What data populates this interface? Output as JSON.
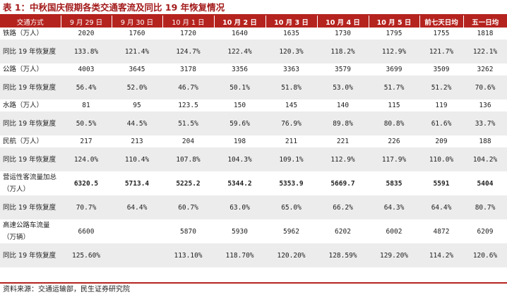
{
  "title": "表 1：中秋国庆假期各类交通客流及同比 19 年恢复情况",
  "source": "资料来源：交通运输部，民生证券研究院",
  "colors": {
    "accent": "#b5231f",
    "title": "#a31a1a",
    "stripe": "#ececec"
  },
  "table": {
    "headers": [
      "交通方式",
      "9 月 29 日",
      "9 月 30 日",
      "10 月 1 日",
      "10 月 2 日",
      "10 月 3 日",
      "10 月 4 日",
      "10 月 5 日",
      "前七天日均",
      "五一日均"
    ],
    "rows": [
      {
        "label": "铁路（万人）",
        "values": [
          "2020",
          "1760",
          "1720",
          "1640",
          "1635",
          "1730",
          "1795",
          "1755",
          "1818"
        ]
      },
      {
        "label": "同比 19 年恢复度",
        "values": [
          "133.8%",
          "121.4%",
          "124.7%",
          "122.4%",
          "120.3%",
          "118.2%",
          "112.9%",
          "121.7%",
          "122.1%"
        ]
      },
      {
        "label": "公路（万人）",
        "values": [
          "4003",
          "3645",
          "3178",
          "3356",
          "3363",
          "3579",
          "3699",
          "3509",
          "3262"
        ]
      },
      {
        "label": "同比 19 年恢复度",
        "values": [
          "56.4%",
          "52.0%",
          "46.7%",
          "50.1%",
          "51.8%",
          "53.0%",
          "51.7%",
          "51.2%",
          "70.6%"
        ]
      },
      {
        "label": "水路（万人）",
        "values": [
          "81",
          "95",
          "123.5",
          "150",
          "145",
          "140",
          "115",
          "119",
          "136"
        ]
      },
      {
        "label": "同比 19 年恢复度",
        "values": [
          "50.5%",
          "44.5%",
          "51.5%",
          "59.6%",
          "76.9%",
          "89.8%",
          "80.8%",
          "61.6%",
          "33.7%"
        ]
      },
      {
        "label": "民航（万人）",
        "values": [
          "217",
          "213",
          "204",
          "198",
          "211",
          "221",
          "226",
          "209",
          "188"
        ]
      },
      {
        "label": "同比 19 年恢复度",
        "values": [
          "124.0%",
          "110.4%",
          "107.8%",
          "104.3%",
          "109.1%",
          "112.9%",
          "117.9%",
          "110.0%",
          "104.2%"
        ]
      },
      {
        "label": "营运性客流量加总（万人）",
        "values": [
          "6320.5",
          "5713.4",
          "5225.2",
          "5344.2",
          "5353.9",
          "5669.7",
          "5835",
          "5591",
          "5404"
        ]
      },
      {
        "label": "同比 19 年恢复度",
        "values": [
          "70.7%",
          "64.4%",
          "60.7%",
          "63.0%",
          "65.0%",
          "66.2%",
          "64.3%",
          "64.4%",
          "80.7%"
        ]
      },
      {
        "label": "高速公路车流量（万辆）",
        "values": [
          "6600",
          "",
          "5870",
          "5930",
          "5962",
          "6202",
          "6002",
          "4872",
          "6209"
        ]
      },
      {
        "label": "同比 19 年恢复度",
        "values": [
          "125.60%",
          "",
          "113.10%",
          "118.70%",
          "120.20%",
          "128.59%",
          "129.20%",
          "114.2%",
          "120.6%"
        ]
      }
    ]
  }
}
